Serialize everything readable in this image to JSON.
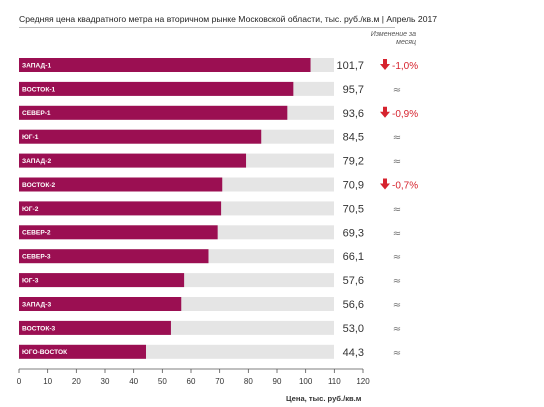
{
  "chart_data": {
    "type": "bar",
    "orientation": "horizontal",
    "title": "Средняя цена квадратного метра на вторичном рынке Московской области, тыс. руб./кв.м | Апрель 2017",
    "change_header": "Изменение за месяц",
    "xlabel": "Цена, тыс. руб./кв.м",
    "xlim": [
      0,
      120
    ],
    "ticks": [
      0,
      10,
      20,
      30,
      40,
      50,
      60,
      70,
      80,
      90,
      100,
      110,
      120
    ],
    "grid": false,
    "categories": [
      "ЗАПАД-1",
      "ВОСТОК-1",
      "СЕВЕР-1",
      "ЮГ-1",
      "ЗАПАД-2",
      "ВОСТОК-2",
      "ЮГ-2",
      "СЕВЕР-2",
      "СЕВЕР-3",
      "ЮГ-3",
      "ЗАПАД-3",
      "ВОСТОК-3",
      "ЮГО-ВОСТОК"
    ],
    "values": [
      101.7,
      95.7,
      93.6,
      84.5,
      79.2,
      70.9,
      70.5,
      69.3,
      66.1,
      57.6,
      56.6,
      53.0,
      44.3
    ],
    "value_labels": [
      "101,7",
      "95,7",
      "93,6",
      "84,5",
      "79,2",
      "70,9",
      "70,5",
      "69,3",
      "66,1",
      "57,6",
      "56,6",
      "53,0",
      "44,3"
    ],
    "changes": [
      {
        "direction": "down",
        "text": "-1,0%"
      },
      {
        "direction": "flat",
        "text": "≈"
      },
      {
        "direction": "down",
        "text": "-0,9%"
      },
      {
        "direction": "flat",
        "text": "≈"
      },
      {
        "direction": "flat",
        "text": "≈"
      },
      {
        "direction": "down",
        "text": "-0,7%"
      },
      {
        "direction": "flat",
        "text": "≈"
      },
      {
        "direction": "flat",
        "text": "≈"
      },
      {
        "direction": "flat",
        "text": "≈"
      },
      {
        "direction": "flat",
        "text": "≈"
      },
      {
        "direction": "flat",
        "text": "≈"
      },
      {
        "direction": "flat",
        "text": "≈"
      },
      {
        "direction": "flat",
        "text": "≈"
      }
    ],
    "colors": {
      "bar": "#9b0f52",
      "track": "#e5e5e5",
      "decline": "#d6232e",
      "flat": "#777777"
    }
  }
}
